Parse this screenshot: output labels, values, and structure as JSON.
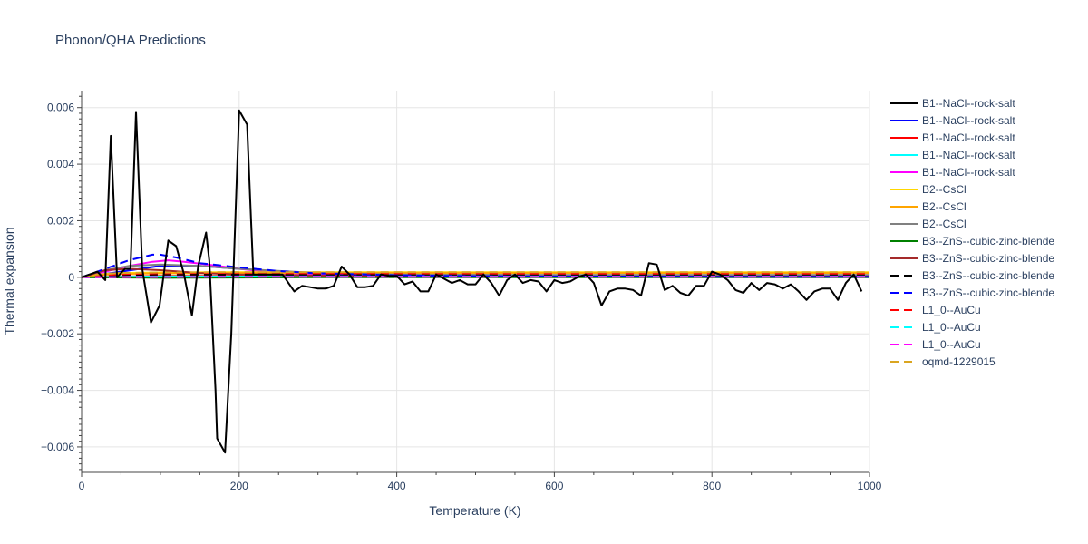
{
  "chart_data": {
    "type": "line",
    "title": "Phonon/QHA Predictions",
    "xlabel": "Temperature (K)",
    "ylabel": "Thermal expansion",
    "xlim": [
      0,
      1000
    ],
    "ylim": [
      -0.0069,
      0.0066
    ],
    "x_ticks": [
      0,
      200,
      400,
      600,
      800,
      1000
    ],
    "x_tick_labels": [
      "0",
      "200",
      "400",
      "600",
      "800",
      "1000"
    ],
    "y_ticks": [
      -0.006,
      -0.004,
      -0.002,
      0,
      0.002,
      0.004,
      0.006
    ],
    "y_tick_labels": [
      "−0.006",
      "−0.004",
      "−0.002",
      "0",
      "0.002",
      "0.004",
      "0.006"
    ],
    "grid": true,
    "legend_position": "right",
    "series": [
      {
        "name": "B1--NaCl--rock-salt",
        "color": "#000000",
        "dash": "solid",
        "x": [
          0,
          10,
          20,
          30,
          37,
          45,
          55,
          62,
          69,
          77,
          88,
          99,
          110,
          120,
          130,
          140,
          148,
          158,
          162,
          170,
          172,
          182,
          190,
          200,
          210,
          218,
          230,
          242,
          255,
          270,
          280,
          290,
          300,
          310,
          320,
          330,
          340,
          350,
          360,
          370,
          380,
          390,
          400,
          410,
          420,
          430,
          440,
          450,
          460,
          470,
          480,
          490,
          500,
          510,
          520,
          530,
          540,
          550,
          560,
          570,
          580,
          590,
          600,
          610,
          620,
          630,
          640,
          650,
          660,
          670,
          680,
          690,
          700,
          710,
          720,
          730,
          740,
          750,
          760,
          770,
          780,
          790,
          800,
          810,
          820,
          830,
          840,
          850,
          860,
          870,
          880,
          890,
          900,
          910,
          920,
          930,
          940,
          950,
          960,
          970,
          980,
          990
        ],
        "y": [
          0,
          0.0001,
          0.0002,
          -0.0001,
          0.005,
          0,
          0.0003,
          0.0003,
          0.00585,
          0.0003,
          -0.0016,
          -0.001,
          0.0013,
          0.0011,
          0.0001,
          -0.00135,
          0.0004,
          0.00158,
          0.0006,
          -0.004,
          -0.0057,
          -0.0062,
          -0.002,
          0.0059,
          0.0054,
          0.0001,
          0.0001,
          0.0001,
          0.0001,
          -0.0005,
          -0.0003,
          -0.00035,
          -0.0004,
          -0.0004,
          -0.0003,
          0.00038,
          0.0001,
          -0.00035,
          -0.00035,
          -0.0003,
          0.0001,
          5e-05,
          5e-05,
          -0.00025,
          -0.00015,
          -0.0005,
          -0.0005,
          0.0001,
          -5e-05,
          -0.0002,
          -0.0001,
          -0.00025,
          -0.00025,
          0.0001,
          -0.0002,
          -0.00065,
          -0.0001,
          0.0001,
          -0.0002,
          -0.0001,
          -0.00015,
          -0.0005,
          -0.0001,
          -0.0002,
          -0.00015,
          1e-05,
          0.0001,
          -0.0002,
          -0.001,
          -0.0005,
          -0.0004,
          -0.0004,
          -0.00045,
          -0.00065,
          0.0005,
          0.00045,
          -0.00045,
          -0.0003,
          -0.00055,
          -0.00065,
          -0.0003,
          -0.0003,
          0.0002,
          0.0001,
          -0.0001,
          -0.00045,
          -0.00055,
          -0.0002,
          -0.00045,
          -0.0002,
          -0.00025,
          -0.0004,
          -0.00025,
          -0.0005,
          -0.0008,
          -0.0005,
          -0.0004,
          -0.0004,
          -0.0008,
          -0.0002,
          0.0001,
          -0.0005
        ]
      },
      {
        "name": "B1--NaCl--rock-salt",
        "color": "#0000ff",
        "dash": "solid",
        "x": [
          0,
          50,
          100,
          150,
          200,
          300,
          400,
          500,
          600,
          700,
          800,
          900,
          1000
        ],
        "y": [
          0,
          0.0002,
          0.0004,
          0.0004,
          0.0003,
          0.00012,
          5e-05,
          3e-05,
          2e-05,
          1e-05,
          1e-05,
          1e-05,
          1e-05
        ]
      },
      {
        "name": "B1--NaCl--rock-salt",
        "color": "#ff0000",
        "dash": "solid",
        "x": [
          0,
          100,
          200,
          300,
          400,
          500,
          600,
          700,
          800,
          900,
          1000
        ],
        "y": [
          0,
          5e-05,
          5e-05,
          4e-05,
          4e-05,
          3e-05,
          3e-05,
          3e-05,
          3e-05,
          3e-05,
          3e-05
        ]
      },
      {
        "name": "B1--NaCl--rock-salt",
        "color": "#00ffff",
        "dash": "solid",
        "x": [
          0,
          100,
          200,
          300,
          400,
          500,
          600,
          700,
          800,
          900,
          1000
        ],
        "y": [
          0,
          3e-05,
          3e-05,
          3e-05,
          3e-05,
          3e-05,
          3e-05,
          3e-05,
          3e-05,
          3e-05,
          3e-05
        ]
      },
      {
        "name": "B1--NaCl--rock-salt",
        "color": "#ff00ff",
        "dash": "solid",
        "x": [
          0,
          30,
          60,
          90,
          110,
          130,
          160,
          200,
          250,
          300,
          400,
          500,
          600,
          800,
          1000
        ],
        "y": [
          0,
          0.0002,
          0.0004,
          0.00055,
          0.0006,
          0.00055,
          0.00045,
          0.0003,
          0.00015,
          8e-05,
          4e-05,
          3e-05,
          2e-05,
          2e-05,
          2e-05
        ]
      },
      {
        "name": "B2--CsCl",
        "color": "#ffd700",
        "dash": "solid",
        "x": [
          0,
          20,
          50,
          100,
          200,
          300,
          400,
          600,
          800,
          1000
        ],
        "y": [
          0,
          0.0001,
          0.00015,
          0.00017,
          0.00018,
          0.00018,
          0.00018,
          0.00018,
          0.00018,
          0.00018
        ]
      },
      {
        "name": "B2--CsCl",
        "color": "#ffa500",
        "dash": "solid",
        "x": [
          0,
          20,
          50,
          100,
          200,
          300,
          400,
          600,
          800,
          1000
        ],
        "y": [
          0,
          8e-05,
          0.00012,
          0.00014,
          0.00015,
          0.00015,
          0.00015,
          0.00015,
          0.00015,
          0.00015
        ]
      },
      {
        "name": "B2--CsCl",
        "color": "#808080",
        "dash": "solid",
        "x": [
          0,
          30,
          60,
          100,
          150,
          200,
          300,
          400,
          600,
          800,
          1000
        ],
        "y": [
          0,
          0.00025,
          0.0004,
          0.00045,
          0.0004,
          0.0003,
          0.00015,
          0.0001,
          8e-05,
          8e-05,
          8e-05
        ]
      },
      {
        "name": "B3--ZnS--cubic-zinc-blende",
        "color": "#008000",
        "dash": "solid",
        "x": [
          0,
          100,
          200,
          300,
          400,
          600,
          800,
          1000
        ],
        "y": [
          0,
          -2e-05,
          -1e-05,
          0,
          0,
          0,
          0,
          0
        ]
      },
      {
        "name": "B3--ZnS--cubic-zinc-blende",
        "color": "#a52a2a",
        "dash": "solid",
        "x": [
          0,
          30,
          60,
          100,
          150,
          200,
          300,
          400,
          600,
          800,
          1000
        ],
        "y": [
          0,
          0.00025,
          0.0003,
          0.00025,
          0.00015,
          0.0001,
          6e-05,
          4e-05,
          3e-05,
          3e-05,
          3e-05
        ]
      },
      {
        "name": "B3--ZnS--cubic-zinc-blende",
        "color": "#000000",
        "dash": "dash",
        "x": [
          0,
          50,
          100,
          150,
          200,
          300,
          400,
          600,
          800,
          1000
        ],
        "y": [
          0,
          8e-05,
          0.0001,
          0.0001,
          9e-05,
          8e-05,
          7e-05,
          7e-05,
          7e-05,
          7e-05
        ]
      },
      {
        "name": "B3--ZnS--cubic-zinc-blende",
        "color": "#0000ff",
        "dash": "dash",
        "x": [
          0,
          30,
          60,
          90,
          100,
          120,
          150,
          200,
          250,
          300,
          400,
          500,
          600,
          800,
          1000
        ],
        "y": [
          0,
          0.0003,
          0.0006,
          0.0008,
          0.0008,
          0.0007,
          0.0005,
          0.00035,
          0.00022,
          0.00014,
          7e-05,
          4e-05,
          3e-05,
          2e-05,
          2e-05
        ]
      },
      {
        "name": "L1_0--AuCu",
        "color": "#ff0000",
        "dash": "dash",
        "x": [
          0,
          30,
          60,
          100,
          150,
          200,
          300,
          400,
          600,
          800,
          1000
        ],
        "y": [
          0,
          8e-05,
          0.00012,
          0.00014,
          0.00015,
          0.00015,
          0.00014,
          0.00014,
          0.00013,
          0.00013,
          0.00013
        ]
      },
      {
        "name": "L1_0--AuCu",
        "color": "#00ffff",
        "dash": "dash",
        "x": [
          0,
          100,
          200,
          400,
          600,
          800,
          1000
        ],
        "y": [
          0,
          2e-05,
          3e-05,
          3e-05,
          3e-05,
          3e-05,
          3e-05
        ]
      },
      {
        "name": "L1_0--AuCu",
        "color": "#ff00ff",
        "dash": "dash",
        "x": [
          0,
          100,
          200,
          400,
          600,
          800,
          1000
        ],
        "y": [
          0,
          1e-05,
          2e-05,
          2e-05,
          2e-05,
          2e-05,
          2e-05
        ]
      },
      {
        "name": "oqmd-1229015",
        "color": "#daa520",
        "dash": "dash",
        "x": [
          0,
          20,
          50,
          100,
          200,
          400,
          600,
          800,
          1000
        ],
        "y": [
          0,
          0.0001,
          0.00015,
          0.00017,
          0.00018,
          0.00018,
          0.00018,
          0.00018,
          0.00018
        ]
      }
    ]
  }
}
